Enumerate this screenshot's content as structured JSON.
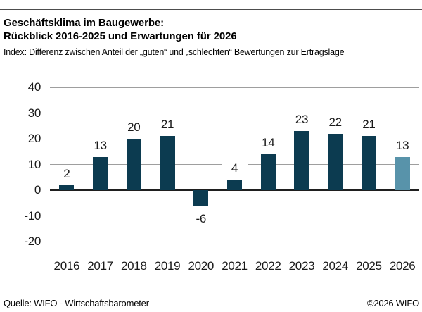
{
  "header": {
    "title_line1": "Geschäftsklima im Baugewerbe:",
    "title_line2": "Rückblick 2016-2025 und Erwartungen für 2026",
    "subtitle": "Index: Differenz zwischen Anteil der „guten“ und „schlechten“ Bewertungen zur Ertragslage"
  },
  "footer": {
    "source": "Quelle: WIFO - Wirtschaftsbarometer",
    "copyright": "©2026 WIFO"
  },
  "chart_data": {
    "type": "bar",
    "title": "Geschäftsklima im Baugewerbe: Rückblick 2016-2025 und Erwartungen für 2026",
    "subtitle": "Index: Differenz zwischen Anteil der „guten“ und „schlechten“ Bewertungen zur Ertragslage",
    "categories": [
      "2016",
      "2017",
      "2018",
      "2019",
      "2020",
      "2021",
      "2022",
      "2023",
      "2024",
      "2025",
      "2026"
    ],
    "values": [
      2,
      13,
      20,
      21,
      -6,
      4,
      14,
      23,
      22,
      21,
      13
    ],
    "forecast_index": 10,
    "yticks": [
      40,
      30,
      20,
      10,
      0,
      -10,
      -20
    ],
    "ylim": [
      -20,
      40
    ],
    "grid": "horizontal",
    "value_labels": true,
    "legend": "none",
    "colors": {
      "past_bars": "#0c3b50",
      "forecast_bar": "#5893aa",
      "gridline": "#9e9e9e",
      "zero_line": "#1f1f1f"
    }
  }
}
